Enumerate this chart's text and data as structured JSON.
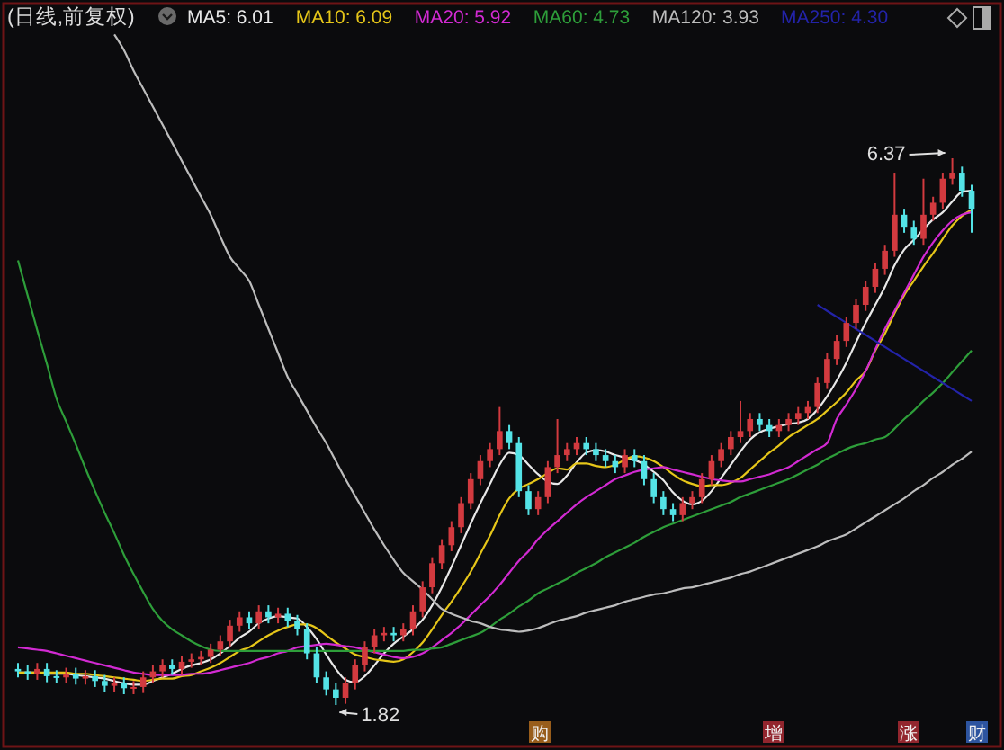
{
  "chart_data": {
    "type": "candlestick",
    "title": "(日线,前复权)",
    "tick_labels": false,
    "legend": "top",
    "categories": [
      null,
      null,
      null,
      null,
      null,
      null,
      null,
      null,
      null,
      null,
      null,
      null,
      null,
      null,
      null,
      null,
      null,
      null,
      null,
      null,
      null,
      null,
      null,
      null,
      null,
      null,
      null,
      null,
      null,
      null,
      null,
      null,
      null,
      null,
      null,
      null,
      null,
      null,
      null,
      null,
      null,
      null,
      null,
      null,
      null,
      null,
      null,
      null,
      null,
      null,
      null,
      null,
      null,
      null,
      null,
      null,
      null,
      null,
      null,
      null,
      null,
      null,
      null,
      null,
      null,
      null,
      null,
      null,
      null,
      null,
      null,
      null,
      null,
      null,
      null,
      null,
      null,
      null,
      null,
      null,
      null,
      null,
      null,
      null,
      null,
      null,
      null,
      null,
      null,
      null,
      null,
      null,
      null,
      null,
      null,
      null,
      null,
      null,
      null,
      null
    ],
    "ohlc": [
      [
        2.12,
        2.17,
        2.05,
        2.1
      ],
      [
        2.1,
        2.15,
        2.03,
        2.08
      ],
      [
        2.08,
        2.17,
        2.03,
        2.12
      ],
      [
        2.12,
        2.17,
        2.01,
        2.06
      ],
      [
        2.06,
        2.11,
        2.0,
        2.05
      ],
      [
        2.05,
        2.13,
        2.0,
        2.08
      ],
      [
        2.08,
        2.13,
        1.99,
        2.04
      ],
      [
        2.04,
        2.11,
        1.99,
        2.06
      ],
      [
        2.06,
        2.11,
        1.97,
        2.02
      ],
      [
        2.02,
        2.07,
        1.93,
        1.98
      ],
      [
        1.98,
        2.05,
        1.93,
        2.0
      ],
      [
        2.0,
        2.05,
        1.91,
        1.96
      ],
      [
        1.96,
        2.02,
        1.91,
        1.97
      ],
      [
        1.97,
        2.1,
        1.92,
        2.05
      ],
      [
        2.05,
        2.15,
        2.0,
        2.1
      ],
      [
        2.1,
        2.2,
        2.05,
        2.15
      ],
      [
        2.15,
        2.2,
        2.07,
        2.12
      ],
      [
        2.12,
        2.23,
        2.07,
        2.18
      ],
      [
        2.18,
        2.25,
        2.13,
        2.2
      ],
      [
        2.2,
        2.27,
        2.15,
        2.22
      ],
      [
        2.22,
        2.33,
        2.17,
        2.28
      ],
      [
        2.28,
        2.4,
        2.23,
        2.35
      ],
      [
        2.35,
        2.53,
        2.3,
        2.48
      ],
      [
        2.48,
        2.6,
        2.43,
        2.55
      ],
      [
        2.55,
        2.6,
        2.45,
        2.5
      ],
      [
        2.5,
        2.65,
        2.45,
        2.6
      ],
      [
        2.6,
        2.65,
        2.5,
        2.55
      ],
      [
        2.55,
        2.63,
        2.5,
        2.58
      ],
      [
        2.58,
        2.63,
        2.47,
        2.52
      ],
      [
        2.52,
        2.57,
        2.4,
        2.45
      ],
      [
        2.45,
        2.5,
        2.2,
        2.25
      ],
      [
        2.25,
        2.3,
        2.0,
        2.05
      ],
      [
        2.05,
        2.1,
        1.9,
        1.95
      ],
      [
        1.95,
        2.0,
        1.82,
        1.88
      ],
      [
        1.88,
        2.05,
        1.83,
        2.0
      ],
      [
        2.0,
        2.2,
        1.95,
        2.15
      ],
      [
        2.15,
        2.35,
        2.1,
        2.3
      ],
      [
        2.3,
        2.45,
        2.25,
        2.4
      ],
      [
        2.4,
        2.47,
        2.35,
        2.42
      ],
      [
        2.42,
        2.47,
        2.35,
        2.4
      ],
      [
        2.4,
        2.5,
        2.35,
        2.45
      ],
      [
        2.45,
        2.65,
        2.4,
        2.6
      ],
      [
        2.6,
        2.85,
        2.55,
        2.8
      ],
      [
        2.8,
        3.05,
        2.75,
        3.0
      ],
      [
        3.0,
        3.2,
        2.95,
        3.15
      ],
      [
        3.15,
        3.35,
        3.1,
        3.3
      ],
      [
        3.3,
        3.55,
        3.25,
        3.5
      ],
      [
        3.5,
        3.75,
        3.45,
        3.7
      ],
      [
        3.7,
        3.9,
        3.65,
        3.85
      ],
      [
        3.85,
        4.0,
        3.8,
        3.95
      ],
      [
        3.95,
        4.3,
        3.9,
        4.1
      ],
      [
        4.1,
        4.15,
        3.95,
        4.0
      ],
      [
        4.0,
        4.05,
        3.55,
        3.6
      ],
      [
        3.6,
        3.65,
        3.4,
        3.45
      ],
      [
        3.45,
        3.6,
        3.4,
        3.55
      ],
      [
        3.55,
        3.85,
        3.5,
        3.8
      ],
      [
        3.8,
        4.2,
        3.75,
        3.9
      ],
      [
        3.9,
        4.0,
        3.85,
        3.95
      ],
      [
        3.95,
        4.05,
        3.9,
        4.0
      ],
      [
        4.0,
        4.05,
        3.9,
        3.95
      ],
      [
        3.95,
        4.0,
        3.85,
        3.9
      ],
      [
        3.9,
        3.95,
        3.8,
        3.85
      ],
      [
        3.85,
        3.9,
        3.75,
        3.8
      ],
      [
        3.8,
        3.95,
        3.75,
        3.9
      ],
      [
        3.9,
        3.95,
        3.8,
        3.85
      ],
      [
        3.85,
        3.9,
        3.65,
        3.7
      ],
      [
        3.7,
        3.75,
        3.5,
        3.55
      ],
      [
        3.55,
        3.6,
        3.4,
        3.45
      ],
      [
        3.45,
        3.5,
        3.35,
        3.4
      ],
      [
        3.4,
        3.55,
        3.35,
        3.5
      ],
      [
        3.5,
        3.6,
        3.45,
        3.55
      ],
      [
        3.55,
        3.75,
        3.5,
        3.7
      ],
      [
        3.7,
        3.9,
        3.65,
        3.85
      ],
      [
        3.85,
        4.0,
        3.8,
        3.95
      ],
      [
        3.95,
        4.1,
        3.9,
        4.05
      ],
      [
        4.05,
        4.35,
        4.0,
        4.1
      ],
      [
        4.1,
        4.25,
        4.05,
        4.2
      ],
      [
        4.2,
        4.25,
        4.1,
        4.15
      ],
      [
        4.15,
        4.2,
        4.05,
        4.1
      ],
      [
        4.1,
        4.2,
        4.05,
        4.15
      ],
      [
        4.15,
        4.25,
        4.1,
        4.2
      ],
      [
        4.2,
        4.3,
        4.15,
        4.25
      ],
      [
        4.25,
        4.35,
        4.2,
        4.3
      ],
      [
        4.3,
        4.55,
        4.25,
        4.5
      ],
      [
        4.5,
        4.75,
        4.45,
        4.7
      ],
      [
        4.7,
        4.9,
        4.65,
        4.85
      ],
      [
        4.85,
        5.05,
        4.8,
        5.0
      ],
      [
        5.0,
        5.2,
        4.95,
        5.15
      ],
      [
        5.15,
        5.35,
        5.1,
        5.3
      ],
      [
        5.3,
        5.5,
        5.25,
        5.45
      ],
      [
        5.45,
        5.65,
        5.4,
        5.6
      ],
      [
        5.6,
        6.25,
        5.55,
        5.9
      ],
      [
        5.9,
        5.95,
        5.75,
        5.8
      ],
      [
        5.8,
        5.85,
        5.65,
        5.7
      ],
      [
        5.7,
        6.2,
        5.65,
        5.9
      ],
      [
        5.9,
        6.05,
        5.85,
        6.0
      ],
      [
        6.0,
        6.25,
        5.95,
        6.2
      ],
      [
        6.2,
        6.37,
        6.15,
        6.25
      ],
      [
        6.25,
        6.3,
        6.05,
        6.1
      ],
      [
        6.1,
        6.15,
        5.75,
        5.95
      ]
    ],
    "series": [
      {
        "name": "MA5: 6.01",
        "type": "line",
        "color": "#e8e8e8",
        "values": [
          2.09,
          2.09,
          2.09,
          2.08,
          2.08,
          2.08,
          2.07,
          2.06,
          2.05,
          2.04,
          2.02,
          2.0,
          1.99,
          1.99,
          2.02,
          2.05,
          2.08,
          2.12,
          2.15,
          2.17,
          2.2,
          2.25,
          2.31,
          2.38,
          2.43,
          2.5,
          2.54,
          2.56,
          2.55,
          2.54,
          2.47,
          2.37,
          2.24,
          2.12,
          2.03,
          2.01,
          2.06,
          2.15,
          2.25,
          2.33,
          2.39,
          2.45,
          2.53,
          2.65,
          2.8,
          2.97,
          3.15,
          3.33,
          3.5,
          3.66,
          3.82,
          3.92,
          3.9,
          3.82,
          3.74,
          3.68,
          3.66,
          3.73,
          3.84,
          3.92,
          3.94,
          3.93,
          3.9,
          3.88,
          3.86,
          3.82,
          3.76,
          3.69,
          3.59,
          3.52,
          3.49,
          3.52,
          3.6,
          3.71,
          3.82,
          3.93,
          4.03,
          4.09,
          4.12,
          4.14,
          4.16,
          4.17,
          4.2,
          4.28,
          4.39,
          4.52,
          4.67,
          4.84,
          5.0,
          5.15,
          5.3,
          5.48,
          5.61,
          5.69,
          5.78,
          5.86,
          5.92,
          6.01,
          6.09,
          6.1
        ]
      },
      {
        "name": "MA10: 6.09",
        "type": "line",
        "color": "#e6c619",
        "values": [
          2.09,
          2.09,
          2.09,
          2.09,
          2.09,
          2.09,
          2.08,
          2.08,
          2.07,
          2.06,
          2.05,
          2.04,
          2.03,
          2.02,
          2.03,
          2.04,
          2.04,
          2.06,
          2.07,
          2.1,
          2.13,
          2.17,
          2.22,
          2.27,
          2.3,
          2.35,
          2.4,
          2.44,
          2.47,
          2.49,
          2.49,
          2.46,
          2.4,
          2.34,
          2.29,
          2.24,
          2.22,
          2.2,
          2.19,
          2.18,
          2.2,
          2.26,
          2.34,
          2.45,
          2.57,
          2.68,
          2.8,
          2.93,
          3.08,
          3.23,
          3.4,
          3.54,
          3.62,
          3.66,
          3.7,
          3.75,
          3.79,
          3.78,
          3.83,
          3.83,
          3.81,
          3.8,
          3.82,
          3.86,
          3.89,
          3.88,
          3.85,
          3.8,
          3.74,
          3.69,
          3.66,
          3.64,
          3.65,
          3.65,
          3.67,
          3.71,
          3.78,
          3.85,
          3.92,
          3.98,
          4.05,
          4.1,
          4.15,
          4.2,
          4.27,
          4.34,
          4.42,
          4.52,
          4.6,
          4.77,
          4.91,
          5.08,
          5.23,
          5.35,
          5.47,
          5.58,
          5.7,
          5.81,
          5.89,
          5.94
        ]
      },
      {
        "name": "MA20: 5.92",
        "type": "line",
        "color": "#d22ad2",
        "values": [
          2.3,
          2.29,
          2.28,
          2.27,
          2.25,
          2.23,
          2.21,
          2.19,
          2.17,
          2.15,
          2.13,
          2.11,
          2.09,
          2.08,
          2.07,
          2.07,
          2.07,
          2.07,
          2.08,
          2.08,
          2.09,
          2.11,
          2.13,
          2.15,
          2.17,
          2.2,
          2.22,
          2.25,
          2.27,
          2.3,
          2.31,
          2.32,
          2.33,
          2.32,
          2.31,
          2.3,
          2.28,
          2.26,
          2.24,
          2.22,
          2.21,
          2.22,
          2.25,
          2.3,
          2.36,
          2.42,
          2.49,
          2.57,
          2.65,
          2.73,
          2.82,
          2.92,
          3.02,
          3.1,
          3.2,
          3.28,
          3.35,
          3.42,
          3.49,
          3.55,
          3.6,
          3.65,
          3.7,
          3.73,
          3.76,
          3.78,
          3.79,
          3.8,
          3.78,
          3.76,
          3.74,
          3.72,
          3.7,
          3.69,
          3.68,
          3.68,
          3.7,
          3.72,
          3.74,
          3.77,
          3.8,
          3.85,
          3.9,
          3.95,
          4.0,
          4.2,
          4.32,
          4.45,
          4.6,
          4.78,
          4.95,
          5.1,
          5.25,
          5.4,
          5.55,
          5.67,
          5.77,
          5.85,
          5.9,
          5.92
        ]
      },
      {
        "name": "MA60: 4.73",
        "type": "line",
        "color": "#2e9e3a",
        "values": [
          5.52,
          5.23,
          4.94,
          4.66,
          4.37,
          4.18,
          3.99,
          3.79,
          3.6,
          3.42,
          3.25,
          3.07,
          2.91,
          2.76,
          2.62,
          2.52,
          2.45,
          2.4,
          2.35,
          2.31,
          2.28,
          2.27,
          2.27,
          2.27,
          2.27,
          2.27,
          2.27,
          2.27,
          2.27,
          2.27,
          2.27,
          2.27,
          2.27,
          2.27,
          2.27,
          2.27,
          2.27,
          2.27,
          2.27,
          2.27,
          2.27,
          2.28,
          2.28,
          2.29,
          2.3,
          2.33,
          2.36,
          2.39,
          2.42,
          2.47,
          2.53,
          2.58,
          2.64,
          2.69,
          2.75,
          2.79,
          2.83,
          2.87,
          2.92,
          2.96,
          3.0,
          3.05,
          3.09,
          3.13,
          3.17,
          3.22,
          3.26,
          3.3,
          3.33,
          3.36,
          3.39,
          3.42,
          3.45,
          3.48,
          3.51,
          3.55,
          3.58,
          3.61,
          3.64,
          3.67,
          3.7,
          3.74,
          3.78,
          3.82,
          3.87,
          3.91,
          3.95,
          3.98,
          4.0,
          4.03,
          4.05,
          4.12,
          4.2,
          4.27,
          4.35,
          4.42,
          4.5,
          4.59,
          4.68,
          4.77
        ]
      },
      {
        "name": "MA120: 3.93",
        "type": "line",
        "color": "#bdbdbd",
        "values": [
          null,
          null,
          null,
          null,
          null,
          null,
          null,
          null,
          null,
          null,
          7.4,
          7.27,
          7.1,
          6.95,
          6.8,
          6.65,
          6.5,
          6.35,
          6.2,
          6.05,
          5.9,
          5.72,
          5.55,
          5.45,
          5.35,
          5.15,
          4.95,
          4.75,
          4.55,
          4.41,
          4.27,
          4.13,
          4.0,
          3.85,
          3.7,
          3.56,
          3.42,
          3.28,
          3.15,
          3.03,
          2.92,
          2.85,
          2.78,
          2.7,
          2.62,
          2.58,
          2.55,
          2.52,
          2.5,
          2.47,
          2.45,
          2.44,
          2.43,
          2.44,
          2.46,
          2.49,
          2.52,
          2.54,
          2.56,
          2.59,
          2.61,
          2.63,
          2.65,
          2.68,
          2.7,
          2.72,
          2.74,
          2.75,
          2.77,
          2.79,
          2.8,
          2.82,
          2.84,
          2.86,
          2.88,
          2.91,
          2.93,
          2.96,
          2.99,
          3.02,
          3.05,
          3.08,
          3.11,
          3.14,
          3.18,
          3.21,
          3.24,
          3.29,
          3.34,
          3.39,
          3.44,
          3.49,
          3.54,
          3.6,
          3.65,
          3.71,
          3.76,
          3.82,
          3.87,
          3.93
        ]
      },
      {
        "name": "MA250: 4.30",
        "type": "line",
        "color": "#2323a8",
        "values": [
          null,
          null,
          null,
          null,
          null,
          null,
          null,
          null,
          null,
          null,
          null,
          null,
          null,
          null,
          null,
          null,
          null,
          null,
          null,
          null,
          null,
          null,
          null,
          null,
          null,
          null,
          null,
          null,
          null,
          null,
          null,
          null,
          null,
          null,
          null,
          null,
          null,
          null,
          null,
          null,
          null,
          null,
          null,
          null,
          null,
          null,
          null,
          null,
          null,
          null,
          null,
          null,
          null,
          null,
          null,
          null,
          null,
          null,
          null,
          null,
          null,
          null,
          null,
          null,
          null,
          null,
          null,
          null,
          null,
          null,
          null,
          null,
          null,
          null,
          null,
          null,
          null,
          null,
          null,
          null,
          null,
          null,
          null,
          5.15,
          5.1,
          5.05,
          5.0,
          4.95,
          4.9,
          4.85,
          4.8,
          4.75,
          4.7,
          4.65,
          4.6,
          4.55,
          4.5,
          4.45,
          4.4,
          4.35
        ]
      }
    ],
    "annotations": [
      "6.37",
      "1.82",
      "购",
      "增",
      "涨",
      "财"
    ]
  }
}
